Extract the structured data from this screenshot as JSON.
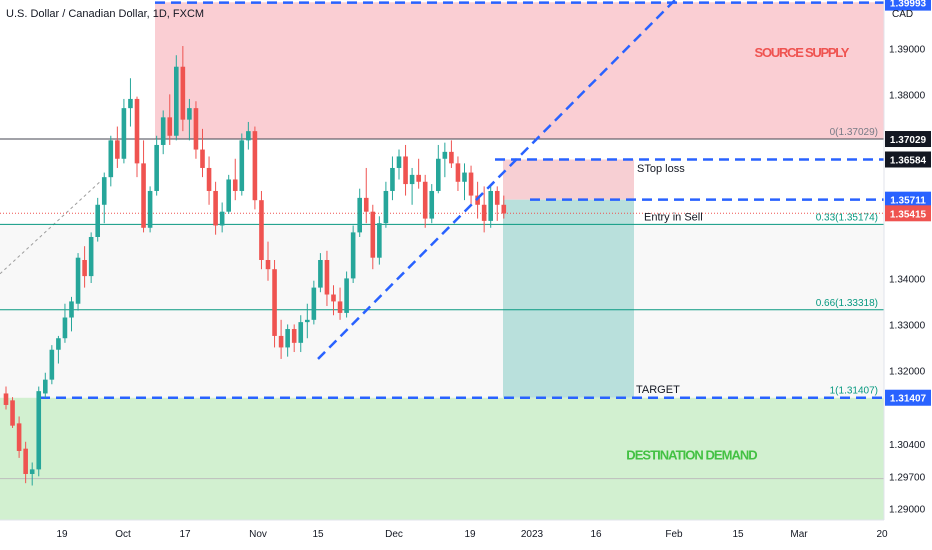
{
  "header": {
    "symbol": "U.S. Dollar / Canadian Dollar, 1D, FXCM",
    "currency": "CAD"
  },
  "colors": {
    "up": "#26a69a",
    "down": "#ef5350",
    "supply_zone": "#f9c9ce",
    "demand_zone": "#cdeecb",
    "trend": "#2962ff",
    "fib": "#089981",
    "fib_top": "#131722",
    "sl_zone": "#f7cfd3",
    "tp_zone": "#b9e0dc"
  },
  "chart_data": {
    "type": "candlestick",
    "title": "U.S. Dollar / Canadian Dollar, 1D, FXCM",
    "x_tick_labels": [
      "19",
      "Oct",
      "17",
      "Nov",
      "15",
      "Dec",
      "19",
      "2023",
      "16",
      "Feb",
      "15",
      "Mar",
      "20"
    ],
    "y_tick_labels": [
      "1.39000",
      "1.38000",
      "1.34000",
      "1.33000",
      "1.32000",
      "1.30400",
      "1.29700",
      "1.29000"
    ],
    "ylim": [
      1.2875,
      1.4005
    ],
    "candles": [
      {
        "o": 1.315,
        "h": 1.3165,
        "l": 1.3115,
        "c": 1.3125
      },
      {
        "o": 1.3135,
        "h": 1.3142,
        "l": 1.3075,
        "c": 1.308
      },
      {
        "o": 1.3085,
        "h": 1.31,
        "l": 1.301,
        "c": 1.3025
      },
      {
        "o": 1.303,
        "h": 1.3045,
        "l": 1.2955,
        "c": 1.2975
      },
      {
        "o": 1.2975,
        "h": 1.3,
        "l": 1.295,
        "c": 1.2985
      },
      {
        "o": 1.2985,
        "h": 1.3165,
        "l": 1.297,
        "c": 1.3155
      },
      {
        "o": 1.315,
        "h": 1.3195,
        "l": 1.314,
        "c": 1.318
      },
      {
        "o": 1.318,
        "h": 1.3255,
        "l": 1.317,
        "c": 1.3245
      },
      {
        "o": 1.3245,
        "h": 1.3275,
        "l": 1.3215,
        "c": 1.327
      },
      {
        "o": 1.327,
        "h": 1.3345,
        "l": 1.326,
        "c": 1.3315
      },
      {
        "o": 1.3315,
        "h": 1.336,
        "l": 1.3285,
        "c": 1.335
      },
      {
        "o": 1.3345,
        "h": 1.3455,
        "l": 1.333,
        "c": 1.3445
      },
      {
        "o": 1.344,
        "h": 1.347,
        "l": 1.338,
        "c": 1.3405
      },
      {
        "o": 1.3405,
        "h": 1.35,
        "l": 1.339,
        "c": 1.349
      },
      {
        "o": 1.349,
        "h": 1.3575,
        "l": 1.348,
        "c": 1.356
      },
      {
        "o": 1.356,
        "h": 1.363,
        "l": 1.352,
        "c": 1.362
      },
      {
        "o": 1.362,
        "h": 1.371,
        "l": 1.36,
        "c": 1.37
      },
      {
        "o": 1.37,
        "h": 1.373,
        "l": 1.364,
        "c": 1.366
      },
      {
        "o": 1.366,
        "h": 1.379,
        "l": 1.365,
        "c": 1.377
      },
      {
        "o": 1.377,
        "h": 1.3835,
        "l": 1.373,
        "c": 1.379
      },
      {
        "o": 1.379,
        "h": 1.3795,
        "l": 1.362,
        "c": 1.365
      },
      {
        "o": 1.365,
        "h": 1.37,
        "l": 1.35,
        "c": 1.351
      },
      {
        "o": 1.351,
        "h": 1.36,
        "l": 1.35,
        "c": 1.359
      },
      {
        "o": 1.359,
        "h": 1.371,
        "l": 1.358,
        "c": 1.369
      },
      {
        "o": 1.369,
        "h": 1.3765,
        "l": 1.367,
        "c": 1.375
      },
      {
        "o": 1.375,
        "h": 1.38,
        "l": 1.369,
        "c": 1.371
      },
      {
        "o": 1.371,
        "h": 1.3885,
        "l": 1.37,
        "c": 1.386
      },
      {
        "o": 1.386,
        "h": 1.3905,
        "l": 1.372,
        "c": 1.3745
      },
      {
        "o": 1.3745,
        "h": 1.379,
        "l": 1.37,
        "c": 1.377
      },
      {
        "o": 1.377,
        "h": 1.3785,
        "l": 1.366,
        "c": 1.368
      },
      {
        "o": 1.368,
        "h": 1.3725,
        "l": 1.362,
        "c": 1.364
      },
      {
        "o": 1.364,
        "h": 1.3665,
        "l": 1.356,
        "c": 1.359
      },
      {
        "o": 1.359,
        "h": 1.361,
        "l": 1.3495,
        "c": 1.3515
      },
      {
        "o": 1.3515,
        "h": 1.3565,
        "l": 1.35,
        "c": 1.3545
      },
      {
        "o": 1.3545,
        "h": 1.3625,
        "l": 1.354,
        "c": 1.3615
      },
      {
        "o": 1.3615,
        "h": 1.366,
        "l": 1.357,
        "c": 1.359
      },
      {
        "o": 1.359,
        "h": 1.3715,
        "l": 1.358,
        "c": 1.37
      },
      {
        "o": 1.37,
        "h": 1.374,
        "l": 1.368,
        "c": 1.372
      },
      {
        "o": 1.372,
        "h": 1.373,
        "l": 1.355,
        "c": 1.357
      },
      {
        "o": 1.357,
        "h": 1.359,
        "l": 1.342,
        "c": 1.344
      },
      {
        "o": 1.344,
        "h": 1.348,
        "l": 1.3395,
        "c": 1.342
      },
      {
        "o": 1.342,
        "h": 1.344,
        "l": 1.325,
        "c": 1.3275
      },
      {
        "o": 1.3275,
        "h": 1.331,
        "l": 1.3225,
        "c": 1.325
      },
      {
        "o": 1.325,
        "h": 1.33,
        "l": 1.323,
        "c": 1.329
      },
      {
        "o": 1.329,
        "h": 1.33,
        "l": 1.324,
        "c": 1.326
      },
      {
        "o": 1.326,
        "h": 1.332,
        "l": 1.324,
        "c": 1.3305
      },
      {
        "o": 1.3305,
        "h": 1.3345,
        "l": 1.327,
        "c": 1.331
      },
      {
        "o": 1.331,
        "h": 1.3395,
        "l": 1.33,
        "c": 1.338
      },
      {
        "o": 1.338,
        "h": 1.3455,
        "l": 1.337,
        "c": 1.344
      },
      {
        "o": 1.344,
        "h": 1.346,
        "l": 1.334,
        "c": 1.3365
      },
      {
        "o": 1.3365,
        "h": 1.3385,
        "l": 1.332,
        "c": 1.335
      },
      {
        "o": 1.335,
        "h": 1.338,
        "l": 1.331,
        "c": 1.3325
      },
      {
        "o": 1.3325,
        "h": 1.3415,
        "l": 1.3315,
        "c": 1.34
      },
      {
        "o": 1.34,
        "h": 1.3515,
        "l": 1.339,
        "c": 1.35
      },
      {
        "o": 1.35,
        "h": 1.3595,
        "l": 1.349,
        "c": 1.3575
      },
      {
        "o": 1.3575,
        "h": 1.364,
        "l": 1.352,
        "c": 1.3545
      },
      {
        "o": 1.3545,
        "h": 1.356,
        "l": 1.342,
        "c": 1.3445
      },
      {
        "o": 1.3445,
        "h": 1.3535,
        "l": 1.343,
        "c": 1.352
      },
      {
        "o": 1.352,
        "h": 1.361,
        "l": 1.351,
        "c": 1.359
      },
      {
        "o": 1.359,
        "h": 1.3665,
        "l": 1.357,
        "c": 1.364
      },
      {
        "o": 1.364,
        "h": 1.368,
        "l": 1.3615,
        "c": 1.3665
      },
      {
        "o": 1.3665,
        "h": 1.369,
        "l": 1.358,
        "c": 1.3605
      },
      {
        "o": 1.3605,
        "h": 1.364,
        "l": 1.356,
        "c": 1.3625
      },
      {
        "o": 1.3625,
        "h": 1.366,
        "l": 1.3595,
        "c": 1.361
      },
      {
        "o": 1.361,
        "h": 1.3625,
        "l": 1.351,
        "c": 1.353
      },
      {
        "o": 1.353,
        "h": 1.3605,
        "l": 1.352,
        "c": 1.359
      },
      {
        "o": 1.359,
        "h": 1.369,
        "l": 1.3585,
        "c": 1.366
      },
      {
        "o": 1.366,
        "h": 1.3695,
        "l": 1.362,
        "c": 1.3675
      },
      {
        "o": 1.3675,
        "h": 1.37,
        "l": 1.364,
        "c": 1.365
      },
      {
        "o": 1.365,
        "h": 1.3665,
        "l": 1.359,
        "c": 1.361
      },
      {
        "o": 1.361,
        "h": 1.365,
        "l": 1.357,
        "c": 1.363
      },
      {
        "o": 1.363,
        "h": 1.3645,
        "l": 1.356,
        "c": 1.358
      },
      {
        "o": 1.358,
        "h": 1.361,
        "l": 1.353,
        "c": 1.356
      },
      {
        "o": 1.356,
        "h": 1.36,
        "l": 1.35,
        "c": 1.3525
      },
      {
        "o": 1.3525,
        "h": 1.36,
        "l": 1.351,
        "c": 1.359
      },
      {
        "o": 1.359,
        "h": 1.36,
        "l": 1.3525,
        "c": 1.356
      },
      {
        "o": 1.356,
        "h": 1.358,
        "l": 1.353,
        "c": 1.3541
      }
    ],
    "zones": [
      {
        "name": "SOURCE SUPPLY",
        "from": 1.4,
        "to": 1.37029
      },
      {
        "name": "DESTINATION DEMAND",
        "from": 1.31407,
        "to": 1.2875
      }
    ],
    "levels": [
      {
        "value": 1.39993,
        "price_label": "1.39993",
        "label_color": "#2962ff",
        "style": "dashed-blue"
      },
      {
        "value": 1.37029,
        "price_label": "1.37029",
        "label_color": "#131722",
        "style": "solid-dark",
        "fib_label": "0(1.37029)"
      },
      {
        "value": 1.36584,
        "price_label": "1.36584",
        "label_color": "#131722",
        "style": "dashed-blue"
      },
      {
        "value": 1.35711,
        "price_label": "1.35711",
        "label_color": "#2962ff",
        "style": "dashed-blue"
      },
      {
        "value": 1.35415,
        "price_label": "1.35415",
        "label_color": "#ef5350",
        "style": "dotted-red"
      },
      {
        "value": 1.35174,
        "style": "solid-green",
        "fib_label": "0.33(1.35174)"
      },
      {
        "value": 1.33318,
        "style": "solid-green",
        "fib_label": "0.66(1.33318)"
      },
      {
        "value": 1.31407,
        "price_label": "1.31407",
        "label_color": "#2962ff",
        "style": "dashed-blue",
        "fib_label": "1(1.31407)"
      }
    ],
    "annotations": [
      {
        "text": "SOURCE SUPPLY",
        "price": 1.389
      },
      {
        "text": "STop loss",
        "price": 1.364
      },
      {
        "text": "Entry in Sell",
        "price": 1.3535
      },
      {
        "text": "TARGET",
        "price": 1.316
      },
      {
        "text": "DESTINATION DEMAND",
        "price": 1.3015
      }
    ],
    "grid": false,
    "legend": "none"
  }
}
